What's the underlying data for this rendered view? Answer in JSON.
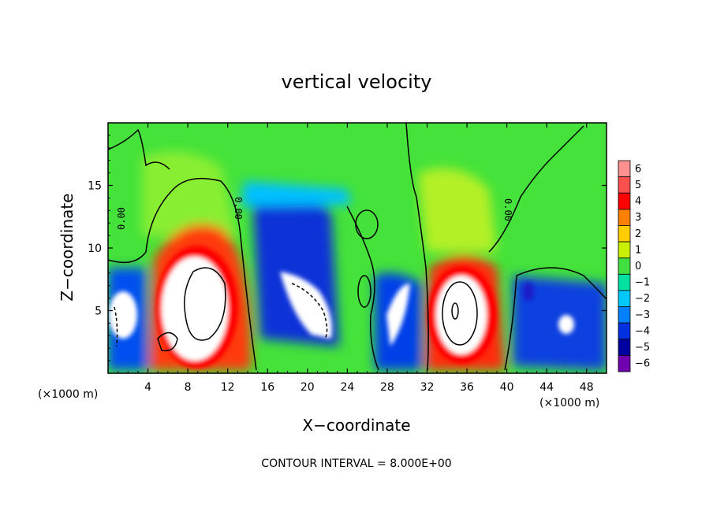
{
  "chart_data": {
    "type": "heatmap",
    "title": "vertical velocity",
    "xlabel": "X−coordinate",
    "ylabel": "Z−coordinate",
    "x_unit_left": "(×1000 m)",
    "x_unit_right": "(×1000 m)",
    "xlim": [
      0,
      50
    ],
    "ylim": [
      0,
      20
    ],
    "x_ticks": [
      4,
      8,
      12,
      16,
      20,
      24,
      28,
      32,
      36,
      40,
      44,
      48
    ],
    "x_tick_labels": [
      "4",
      "8",
      "12",
      "16",
      "20",
      "24",
      "28",
      "32",
      "36",
      "40",
      "44",
      "48"
    ],
    "y_ticks": [
      5,
      10,
      15
    ],
    "y_tick_labels": [
      "5",
      "10",
      "15"
    ],
    "colorbar": {
      "levels": [
        6,
        5,
        4,
        3,
        2,
        1,
        0,
        -1,
        -2,
        -3,
        -4,
        -5,
        -6
      ],
      "labels": [
        "6",
        "5",
        "4",
        "3",
        "2",
        "1",
        "0",
        "−1",
        "−2",
        "−3",
        "−4",
        "−5",
        "−6"
      ],
      "colors": [
        "#ff9090",
        "#ff5050",
        "#ff0000",
        "#ff8000",
        "#ffcc00",
        "#c8f000",
        "#40e040",
        "#00e0a0",
        "#00c8ff",
        "#0080ff",
        "#0030e0",
        "#0000a0",
        "#7000b0"
      ]
    },
    "contour_interval_text": "CONTOUR INTERVAL =  8.000E+00",
    "contour_labels": [
      "0.00",
      "0.00",
      "0.00"
    ],
    "features": [
      {
        "x": 2.0,
        "z": 3.5,
        "w": -6
      },
      {
        "x": 9.0,
        "z": 5.5,
        "w": 10
      },
      {
        "x": 20.0,
        "z": 10.5,
        "w": -5
      },
      {
        "x": 21.0,
        "z": 5.0,
        "w": -7
      },
      {
        "x": 29.0,
        "z": 4.0,
        "w": -7
      },
      {
        "x": 35.0,
        "z": 5.0,
        "w": 10
      },
      {
        "x": 35.5,
        "z": 13.0,
        "w": 2
      },
      {
        "x": 46.0,
        "z": 4.5,
        "w": -4
      }
    ]
  }
}
